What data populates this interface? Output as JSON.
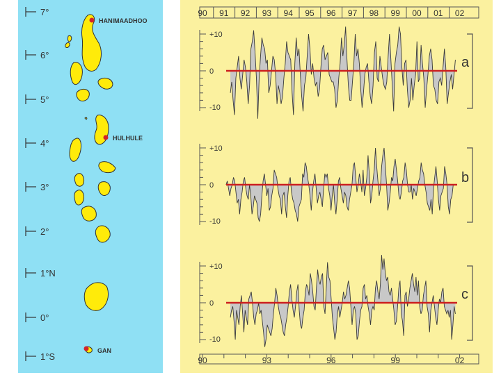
{
  "map": {
    "latitude_labels": [
      "7°",
      "6°",
      "5°",
      "4°",
      "3°",
      "2°",
      "1°N",
      "0°",
      "1°S"
    ],
    "stations": [
      {
        "name": "HANIMAADHOO",
        "color": "#d2232a"
      },
      {
        "name": "HULHULE",
        "color": "#d2232a"
      },
      {
        "name": "GAN",
        "color": "#d2232a"
      }
    ],
    "island_color": "#ffeb0a",
    "sea_color": "#8fe0f4"
  },
  "chart_data": [
    {
      "type": "area",
      "panel_letter": "a",
      "x_start": 1991.3,
      "x_end": 2001.8,
      "ylim": [
        -14,
        14
      ],
      "y_ticks": [
        "+10",
        "0",
        "-10"
      ],
      "values": [
        -6,
        -3,
        -8,
        -12,
        -2,
        1,
        4,
        -2,
        -5,
        -1,
        3,
        1,
        -3,
        -9,
        -4,
        6,
        8,
        11,
        5,
        -2,
        -13,
        -2,
        4,
        9,
        7,
        6,
        2,
        3,
        -6,
        -4,
        0,
        4,
        3,
        -1,
        -9,
        -4,
        -6,
        -9,
        -7,
        -2,
        2,
        8,
        5,
        4,
        3,
        -6,
        -12,
        2,
        9,
        4,
        6,
        -1,
        -7,
        -11,
        -4,
        -2,
        4,
        10,
        6,
        -1,
        2,
        -2,
        -4,
        -3,
        -7,
        -5,
        1,
        6,
        7,
        3,
        4,
        5,
        -1,
        -2,
        -3,
        -3,
        -5,
        -10,
        -8,
        -2,
        2,
        9,
        4,
        7,
        12,
        3,
        -4,
        -8,
        -8,
        -3,
        2,
        10,
        4,
        6,
        2,
        -5,
        -10,
        -6,
        -1,
        1,
        2,
        -3,
        -7,
        -9,
        -4,
        5,
        8,
        -2,
        -3,
        4,
        1,
        -2,
        -4,
        -5,
        -3,
        4,
        10,
        3,
        -4,
        -11,
        2,
        5,
        7,
        12,
        10,
        1,
        -4,
        2,
        3,
        -5,
        -10,
        -8,
        -2,
        -8,
        -4,
        -1,
        8,
        -3,
        -2,
        7,
        2,
        -2,
        -10,
        -5,
        -1,
        4,
        6,
        3,
        -4,
        -5,
        -8,
        -9,
        -3,
        -2,
        -4,
        1,
        6,
        1,
        -9,
        -6,
        -3,
        -1,
        -5,
        -1,
        3
      ]
    },
    {
      "type": "area",
      "panel_letter": "b",
      "x_start": 1991.1,
      "x_end": 2001.7,
      "ylim": [
        -14,
        14
      ],
      "y_ticks": [
        "+10",
        "0",
        "-10"
      ],
      "values": [
        0,
        1,
        -1,
        -3,
        -1,
        0,
        2,
        1,
        -2,
        -5,
        -4,
        -8,
        -4,
        -2,
        1,
        2,
        -1,
        -3,
        -4,
        0,
        -3,
        -8,
        -6,
        -3,
        -4,
        -5,
        -9,
        -10,
        -8,
        -3,
        1,
        3,
        0,
        -3,
        -1,
        -7,
        -6,
        -3,
        -1,
        4,
        3,
        2,
        -1,
        -3,
        -4,
        -8,
        -3,
        -2,
        -6,
        -9,
        -3,
        1,
        2,
        -2,
        -4,
        -5,
        -7,
        -8,
        -10,
        -6,
        -5,
        -4,
        3,
        2,
        6,
        5,
        2,
        0,
        -3,
        -7,
        -2,
        1,
        3,
        -1,
        -5,
        -3,
        -2,
        -4,
        -6,
        -1,
        3,
        2,
        3,
        -1,
        -3,
        -7,
        -3,
        0,
        -5,
        -8,
        -4,
        1,
        2,
        -1,
        -3,
        -5,
        -2,
        -3,
        -6,
        -7,
        -4,
        -2,
        0,
        5,
        6,
        2,
        -2,
        0,
        3,
        1,
        -2,
        4,
        -3,
        -1,
        2,
        8,
        3,
        -5,
        -3,
        1,
        4,
        10,
        5,
        1,
        -3,
        -1,
        5,
        8,
        10,
        5,
        0,
        -7,
        -5,
        -2,
        2,
        1,
        5,
        7,
        4,
        1,
        -3,
        -4,
        -2,
        1,
        2,
        6,
        4,
        0,
        -2,
        -2,
        0,
        -4,
        -1,
        -2,
        -3,
        -1,
        1,
        2,
        6,
        4,
        3,
        0,
        -2,
        -5,
        -6,
        -7,
        -4,
        -8,
        -1,
        2,
        5,
        1,
        -4,
        -7,
        -3,
        -2,
        -1,
        5,
        3,
        0,
        -6,
        -8,
        -4,
        -3,
        0
      ]
    },
    {
      "type": "area",
      "panel_letter": "c",
      "x_start": 1991.3,
      "x_end": 2001.8,
      "ylim": [
        -14,
        14
      ],
      "y_ticks": [
        "+10",
        "0",
        "-10"
      ],
      "values": [
        -4,
        -2,
        -1,
        -5,
        -10,
        -2,
        -4,
        -6,
        -1,
        2,
        -3,
        -8,
        -2,
        -4,
        -6,
        1,
        2,
        3,
        0,
        -4,
        -6,
        -3,
        -2,
        0,
        -3,
        -2,
        -5,
        -8,
        -12,
        -10,
        -6,
        -7,
        -8,
        -9,
        -7,
        -3,
        0,
        4,
        2,
        -1,
        -3,
        -4,
        -6,
        -8,
        -9,
        -6,
        -4,
        -1,
        3,
        5,
        1,
        -2,
        -4,
        -1,
        3,
        5,
        -2,
        -6,
        -7,
        -4,
        -2,
        3,
        5,
        4,
        2,
        8,
        6,
        3,
        -1,
        -2,
        4,
        9,
        6,
        5,
        7,
        8,
        -1,
        -3,
        4,
        11,
        7,
        6,
        1,
        -4,
        -7,
        -10,
        -8,
        -3,
        -1,
        -4,
        -2,
        0,
        3,
        1,
        2,
        4,
        6,
        4,
        -1,
        -6,
        -2,
        -1,
        -3,
        -10,
        -9,
        -5,
        -2,
        -1,
        4,
        5,
        1,
        2,
        -1,
        -3,
        -6,
        -2,
        -1,
        -2,
        4,
        6,
        3,
        1,
        5,
        13,
        9,
        12,
        8,
        6,
        7,
        3,
        2,
        4,
        1,
        -2,
        -6,
        -5,
        -1,
        4,
        6,
        -3,
        -5,
        -9,
        2,
        3,
        -1,
        1,
        4,
        6,
        8,
        5,
        3,
        7,
        2,
        6,
        -1,
        -3,
        -2,
        2,
        4,
        6,
        -1,
        -3,
        -8,
        -2,
        0,
        2,
        -1,
        -4,
        -6,
        -2,
        1,
        0,
        3,
        4,
        -1,
        -2,
        -3,
        -2,
        -4,
        -2,
        -10,
        -6,
        -1,
        -3
      ]
    }
  ],
  "top_axis": {
    "years": [
      "90",
      "91",
      "92",
      "93",
      "94",
      "95",
      "96",
      "97",
      "98",
      "99",
      "00",
      "01",
      "02"
    ]
  },
  "bottom_axis": {
    "years": [
      "90",
      "93",
      "96",
      "99",
      "02"
    ]
  },
  "colors": {
    "zero_line": "#cc1f1f",
    "fill": "#c8c8c8",
    "trace": "#3a3a3a",
    "panel": "#fbf19f"
  }
}
